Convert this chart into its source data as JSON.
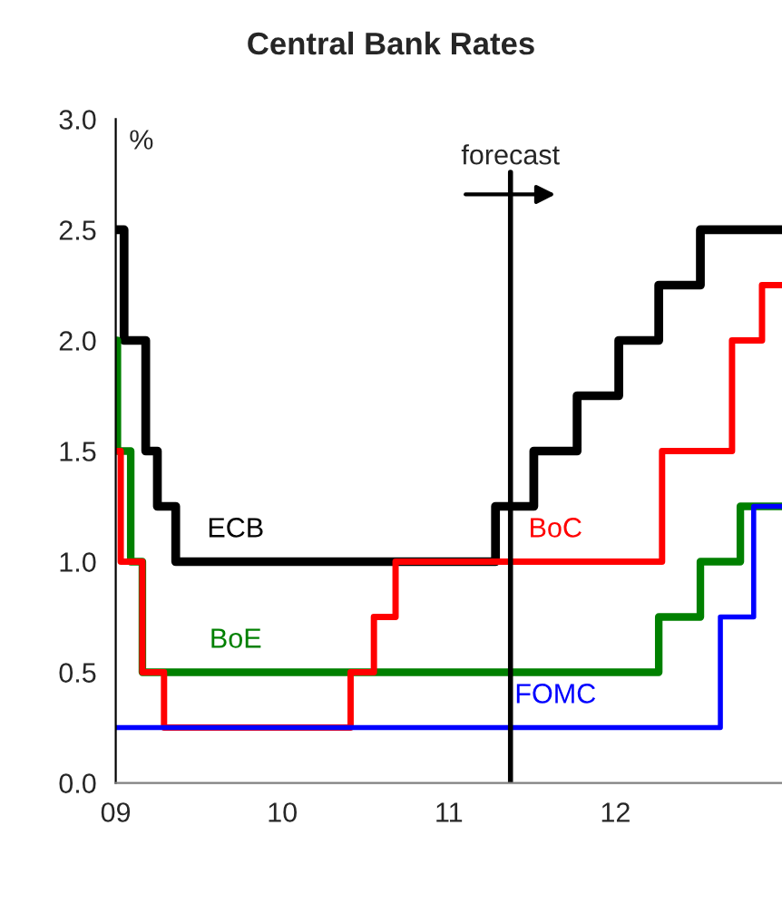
{
  "chart_data": {
    "type": "step",
    "title": "Central Bank Rates",
    "ylabel": "%",
    "xlim": [
      2009,
      2013
    ],
    "ylim": [
      0,
      3
    ],
    "xticks": [
      {
        "value": 2009,
        "label": "09"
      },
      {
        "value": 2010,
        "label": "10"
      },
      {
        "value": 2011,
        "label": "11"
      },
      {
        "value": 2012,
        "label": "12"
      }
    ],
    "yticks": [
      {
        "value": 0,
        "label": "0.0"
      },
      {
        "value": 0.5,
        "label": "0.5"
      },
      {
        "value": 1,
        "label": "1.0"
      },
      {
        "value": 1.5,
        "label": "1.5"
      },
      {
        "value": 2,
        "label": "2.0"
      },
      {
        "value": 2.5,
        "label": "2.5"
      },
      {
        "value": 3,
        "label": "3.0"
      }
    ],
    "grid": false,
    "legend": false,
    "ref_lines": [
      {
        "axis": "x",
        "value": 2011.37,
        "label": "forecast",
        "color": "#000000"
      }
    ],
    "series": [
      {
        "name": "ECB",
        "color": "#000000",
        "x": [
          2009,
          2009.05,
          2009.18,
          2009.25,
          2009.36,
          2011.28,
          2011.51,
          2011.77,
          2012.02,
          2012.26,
          2012.51,
          2013
        ],
        "values": [
          2.5,
          2,
          1.5,
          1.25,
          1,
          1.25,
          1.5,
          1.75,
          2,
          2.25,
          2.5,
          2.5
        ]
      },
      {
        "name": "BoE",
        "color": "#008000",
        "x": [
          2009,
          2009.01,
          2009.09,
          2009.16,
          2012.26,
          2012.51,
          2012.75,
          2013
        ],
        "values": [
          2,
          1.5,
          1,
          0.5,
          0.75,
          1,
          1.25,
          1.25
        ]
      },
      {
        "name": "BoC",
        "color": "#ff0000",
        "x": [
          2009,
          2009.03,
          2009.16,
          2009.29,
          2010.41,
          2010.55,
          2010.68,
          2012.28,
          2012.7,
          2012.88,
          2013
        ],
        "values": [
          1.5,
          1,
          0.5,
          0.25,
          0.5,
          0.75,
          1,
          1.5,
          2,
          2.25,
          2.25
        ]
      },
      {
        "name": "FOMC",
        "color": "#0000ff",
        "x": [
          2009,
          2012.63,
          2012.83,
          2013
        ],
        "values": [
          0.25,
          0.75,
          1.25,
          1.25
        ]
      }
    ]
  }
}
